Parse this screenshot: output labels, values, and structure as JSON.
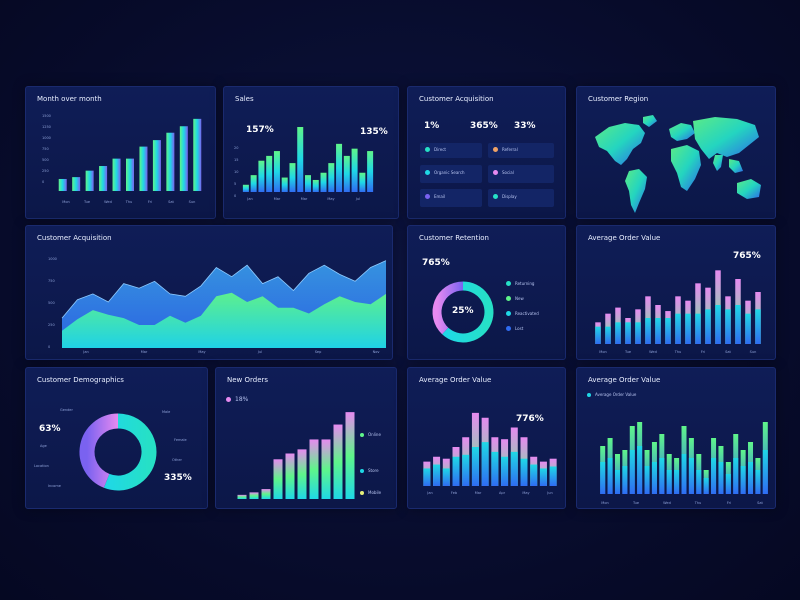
{
  "colors": {
    "green": "#5ff58a",
    "cyan": "#1fd8e6",
    "blue": "#2f6cf2",
    "violet": "#7a62f0",
    "pink": "#e68af0",
    "teal": "#26e0c6",
    "orange": "#f0a266"
  },
  "panels": {
    "month": {
      "title": "Month over month",
      "yticks": [
        "1500",
        "1250",
        "1000",
        "750",
        "500",
        "250",
        "0"
      ],
      "xticks": [
        "Mon",
        "Tue",
        "Wed",
        "Thu",
        "Fri",
        "Sat",
        "Sun"
      ]
    },
    "sales": {
      "title": "Sales",
      "stat1": "157%",
      "stat2": "135%",
      "yticks": [
        "20",
        "15",
        "10",
        "5",
        "0"
      ],
      "xticks": [
        "Jan",
        "Mar",
        "Mar",
        "May",
        "Jul"
      ]
    },
    "acq_top": {
      "title": "Customer Acquisition",
      "stat1": "1%",
      "stat2": "365%",
      "stat3": "33%",
      "items": [
        {
          "label": "Direct",
          "color": "#26e0c6"
        },
        {
          "label": "Referral",
          "color": "#f0a266"
        },
        {
          "label": "Organic Search",
          "color": "#1fd8e6"
        },
        {
          "label": "Social",
          "color": "#e68af0"
        },
        {
          "label": "Email",
          "color": "#7a62f0"
        },
        {
          "label": "Display",
          "color": "#26e0c6"
        }
      ]
    },
    "region": {
      "title": "Customer Region"
    },
    "acq_wide": {
      "title": "Customer Acquisition",
      "yticks": [
        "1000",
        "750",
        "500",
        "250",
        "0"
      ],
      "xticks": [
        "Jan",
        "Mar",
        "May",
        "Jul",
        "Sep",
        "Nov"
      ]
    },
    "retention": {
      "title": "Customer Retention",
      "stat": "765%",
      "center": "25%",
      "legend": [
        "Returning",
        "New",
        "Reactivated",
        "Lost"
      ]
    },
    "aov_right": {
      "title": "Average Order Value",
      "stat": "765%",
      "xticks": [
        "Mon",
        "Tue",
        "Wed",
        "Thu",
        "Fri",
        "Sat",
        "Sun"
      ]
    },
    "demo": {
      "title": "Customer Demographics",
      "stat1": "63%",
      "stat2": "335%",
      "labels_left": [
        "Gender",
        "Age",
        "Location",
        "Income"
      ],
      "labels_right": [
        "Male",
        "Female",
        "Other"
      ]
    },
    "orders": {
      "title": "New Orders",
      "stat": "18%",
      "legend": [
        "Online",
        "Store",
        "Mobile"
      ]
    },
    "aov_mid": {
      "title": "Average Order Value",
      "stat": "776%",
      "xticks": [
        "Jan",
        "Feb",
        "Mar",
        "Apr",
        "May",
        "Jun"
      ]
    },
    "aov_last": {
      "title": "Average Order Value",
      "legend": "Average Order Value",
      "xticks": [
        "Mon",
        "Tue",
        "Wed",
        "Thu",
        "Fri",
        "Sat"
      ]
    }
  },
  "chart_data": [
    {
      "type": "bar",
      "id": "month",
      "values": [
        13,
        15,
        22,
        27,
        35,
        35,
        48,
        55,
        63,
        70,
        78
      ]
    },
    {
      "type": "bar",
      "id": "sales",
      "values": [
        3,
        7,
        13,
        15,
        17,
        6,
        12,
        27,
        7,
        5,
        8,
        12,
        20,
        15,
        18,
        8,
        17
      ]
    },
    {
      "type": "area",
      "id": "acq_wide",
      "series": [
        {
          "values": [
            260,
            420,
            470,
            400,
            560,
            520,
            580,
            470,
            450,
            540,
            700,
            620,
            720,
            560,
            620,
            500,
            650,
            720,
            640,
            580,
            700,
            760
          ]
        },
        {
          "values": [
            150,
            250,
            330,
            290,
            260,
            200,
            200,
            280,
            220,
            280,
            450,
            480,
            400,
            450,
            350,
            350,
            300,
            380,
            450,
            400,
            380,
            470
          ]
        }
      ]
    },
    {
      "type": "pie",
      "id": "retention",
      "values": [
        62,
        38
      ]
    },
    {
      "type": "bar",
      "id": "aov_right",
      "series": [
        {
          "values": [
            25,
            35,
            42,
            30,
            40,
            55,
            45,
            38,
            55,
            50,
            70,
            65,
            85,
            55,
            75,
            50,
            60
          ]
        },
        {
          "values": [
            20,
            20,
            25,
            25,
            25,
            30,
            30,
            30,
            35,
            35,
            35,
            40,
            45,
            40,
            45,
            35,
            40
          ]
        }
      ]
    },
    {
      "type": "pie",
      "id": "demo",
      "values": [
        56,
        44
      ]
    },
    {
      "type": "bar",
      "id": "orders",
      "values": [
        5,
        8,
        12,
        48,
        55,
        60,
        72,
        72,
        90,
        105
      ]
    },
    {
      "type": "bar",
      "id": "aov_mid",
      "series": [
        {
          "values": [
            25,
            30,
            28,
            40,
            50,
            75,
            70,
            50,
            48,
            60,
            50,
            30,
            25,
            28
          ]
        },
        {
          "values": [
            18,
            22,
            18,
            30,
            32,
            40,
            45,
            35,
            30,
            35,
            28,
            22,
            18,
            20
          ]
        }
      ]
    },
    {
      "type": "bar",
      "id": "aov_last",
      "series": [
        {
          "values": [
            60,
            70,
            50,
            55,
            85,
            90,
            55,
            65,
            75,
            50,
            45,
            85,
            70,
            50,
            30,
            70,
            60,
            40,
            75,
            55,
            65,
            45,
            90
          ]
        },
        {
          "values": [
            40,
            45,
            30,
            35,
            55,
            60,
            35,
            40,
            45,
            30,
            30,
            50,
            45,
            30,
            20,
            45,
            40,
            25,
            45,
            35,
            40,
            30,
            55
          ]
        }
      ]
    }
  ]
}
